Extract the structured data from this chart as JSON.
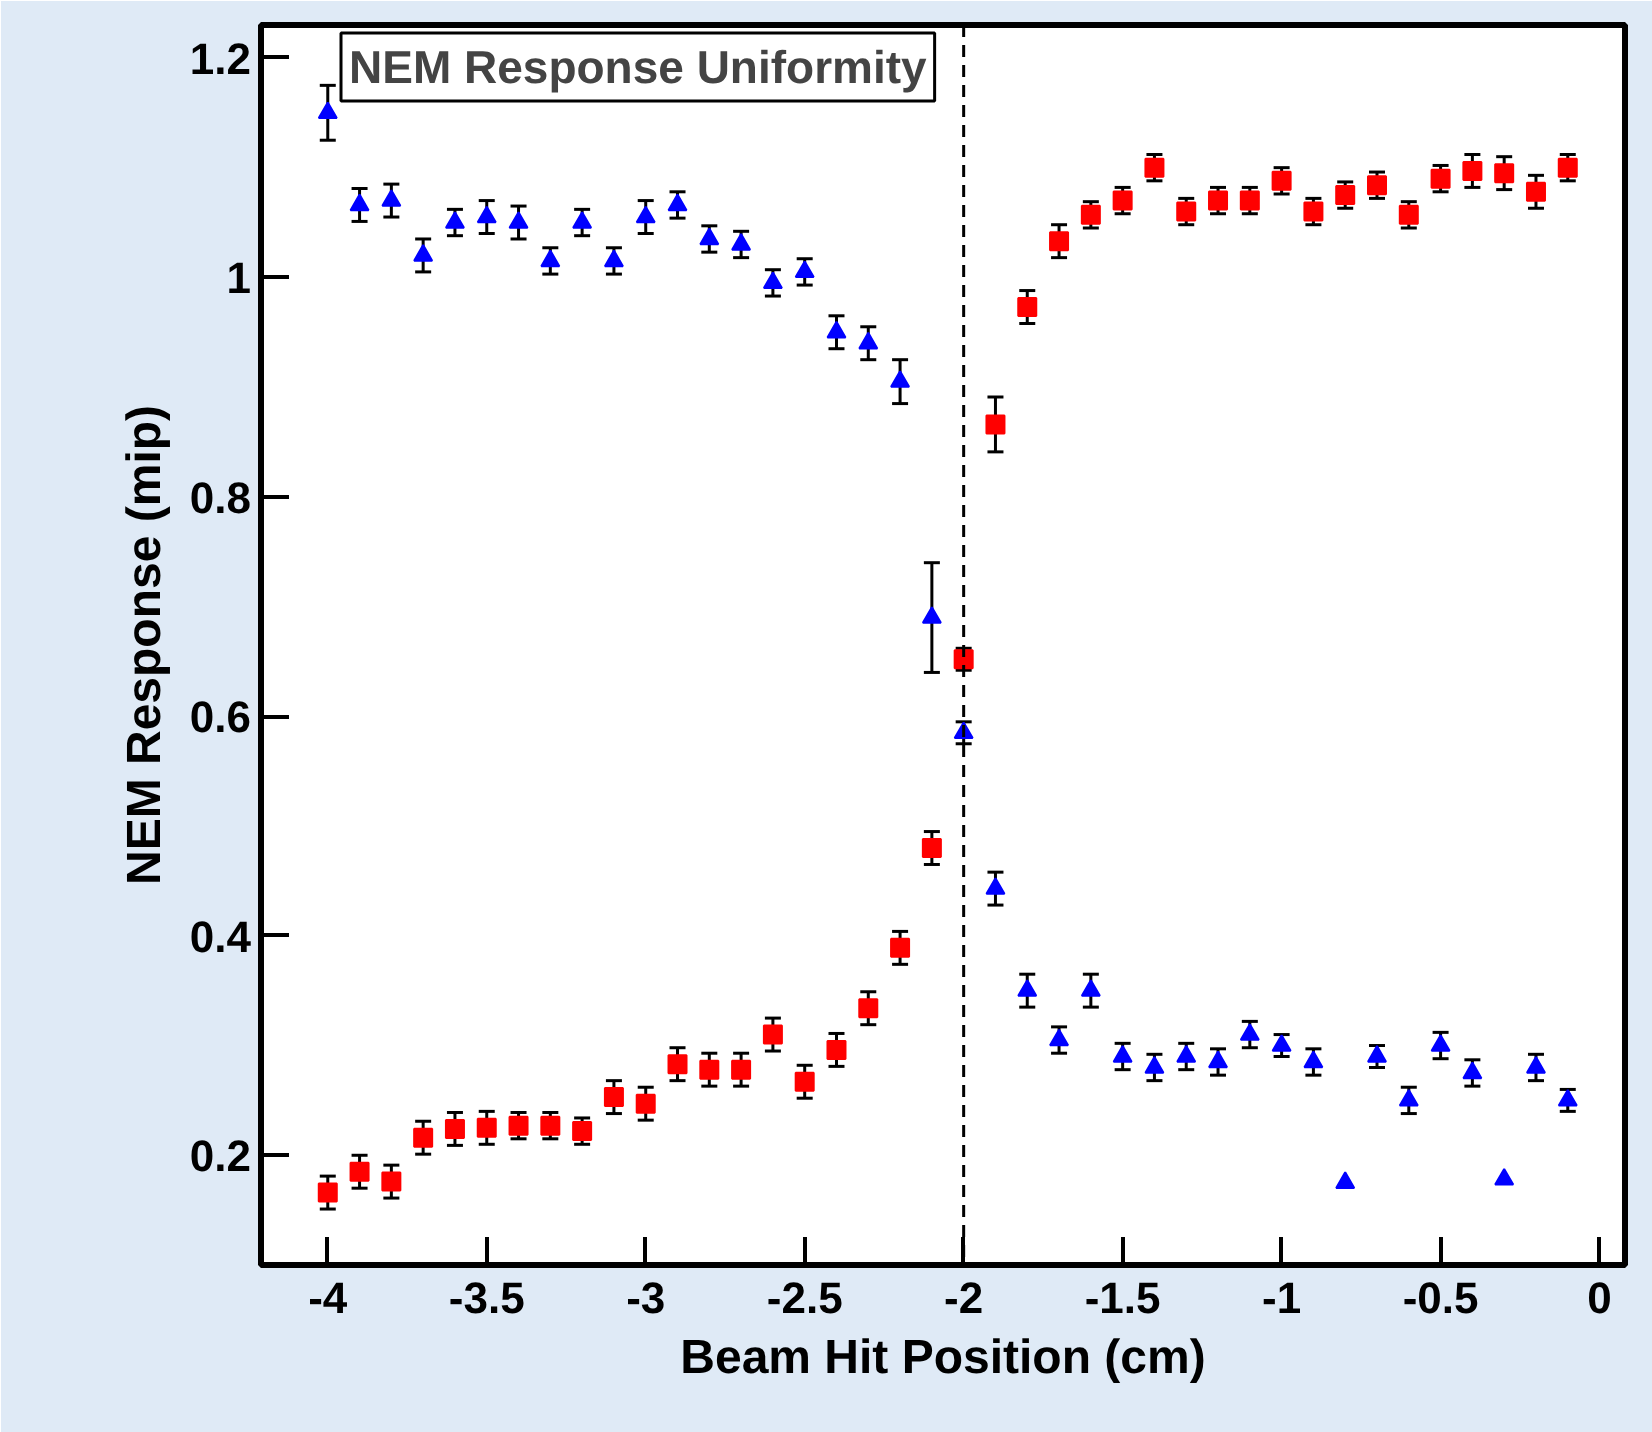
{
  "chart_data": {
    "type": "scatter",
    "title": "NEM Response Uniformity",
    "xlabel": "Beam Hit Position (cm)",
    "ylabel": "NEM Response (mip)",
    "x": [
      -4.0,
      -3.9,
      -3.8,
      -3.7,
      -3.6,
      -3.5,
      -3.4,
      -3.3,
      -3.2,
      -3.1,
      -3.0,
      -2.9,
      -2.8,
      -2.7,
      -2.6,
      -2.5,
      -2.4,
      -2.3,
      -2.2,
      -2.1,
      -2.0,
      -1.9,
      -1.8,
      -1.7,
      -1.6,
      -1.5,
      -1.4,
      -1.3,
      -1.2,
      -1.1,
      -1.0,
      -0.9,
      -0.8,
      -0.7,
      -0.6,
      -0.5,
      -0.4,
      -0.3,
      -0.2,
      -0.1
    ],
    "series": [
      {
        "color": "#0000ff",
        "marker": "triangle",
        "values": [
          1.15,
          1.066,
          1.07,
          1.02,
          1.05,
          1.055,
          1.05,
          1.015,
          1.05,
          1.015,
          1.055,
          1.066,
          1.035,
          1.03,
          0.995,
          1.005,
          0.95,
          0.94,
          0.905,
          0.69,
          0.585,
          0.443,
          0.35,
          0.305,
          0.35,
          0.29,
          0.28,
          0.29,
          0.285,
          0.31,
          0.3,
          0.285,
          0.175,
          0.29,
          0.25,
          0.3,
          0.275,
          0.178,
          0.28,
          0.25
        ],
        "errors": [
          0.025,
          0.015,
          0.015,
          0.015,
          0.012,
          0.015,
          0.015,
          0.012,
          0.012,
          0.012,
          0.015,
          0.012,
          0.012,
          0.012,
          0.012,
          0.012,
          0.015,
          0.015,
          0.02,
          0.05,
          0.01,
          0.015,
          0.015,
          0.012,
          0.015,
          0.012,
          0.012,
          0.012,
          0.012,
          0.012,
          0.01,
          0.012,
          null,
          0.01,
          0.012,
          0.012,
          0.012,
          null,
          0.012,
          0.01
        ]
      },
      {
        "color": "#ff0000",
        "marker": "square",
        "values": [
          0.166,
          0.185,
          0.176,
          0.216,
          0.224,
          0.225,
          0.227,
          0.227,
          0.222,
          0.253,
          0.247,
          0.283,
          0.278,
          0.278,
          0.31,
          0.267,
          0.296,
          0.334,
          0.389,
          0.48,
          0.652,
          0.866,
          0.973,
          1.033,
          1.057,
          1.07,
          1.1,
          1.06,
          1.07,
          1.07,
          1.088,
          1.06,
          1.075,
          1.084,
          1.057,
          1.09,
          1.097,
          1.095,
          1.078,
          1.1
        ],
        "errors": [
          0.015,
          0.015,
          0.015,
          0.015,
          0.015,
          0.015,
          0.012,
          0.012,
          0.012,
          0.015,
          0.015,
          0.015,
          0.015,
          0.015,
          0.015,
          0.015,
          0.015,
          0.015,
          0.015,
          0.015,
          0.01,
          0.025,
          0.015,
          0.015,
          0.012,
          0.012,
          0.012,
          0.012,
          0.012,
          0.012,
          0.012,
          0.012,
          0.012,
          0.012,
          0.012,
          0.012,
          0.015,
          0.015,
          0.015,
          0.012
        ]
      }
    ],
    "xlim": [
      -4.21,
      0.08
    ],
    "ylim": [
      0.1,
      1.23
    ],
    "xticks": [
      -4,
      -3.5,
      -3,
      -2.5,
      -2,
      -1.5,
      -1,
      -0.5,
      0
    ],
    "yticks": [
      0.2,
      0.4,
      0.6,
      0.8,
      1,
      1.2
    ],
    "ref_lines": [
      {
        "axis": "x",
        "value": -2,
        "line_style": "dashed",
        "color": "#000000"
      }
    ],
    "grid": false
  }
}
